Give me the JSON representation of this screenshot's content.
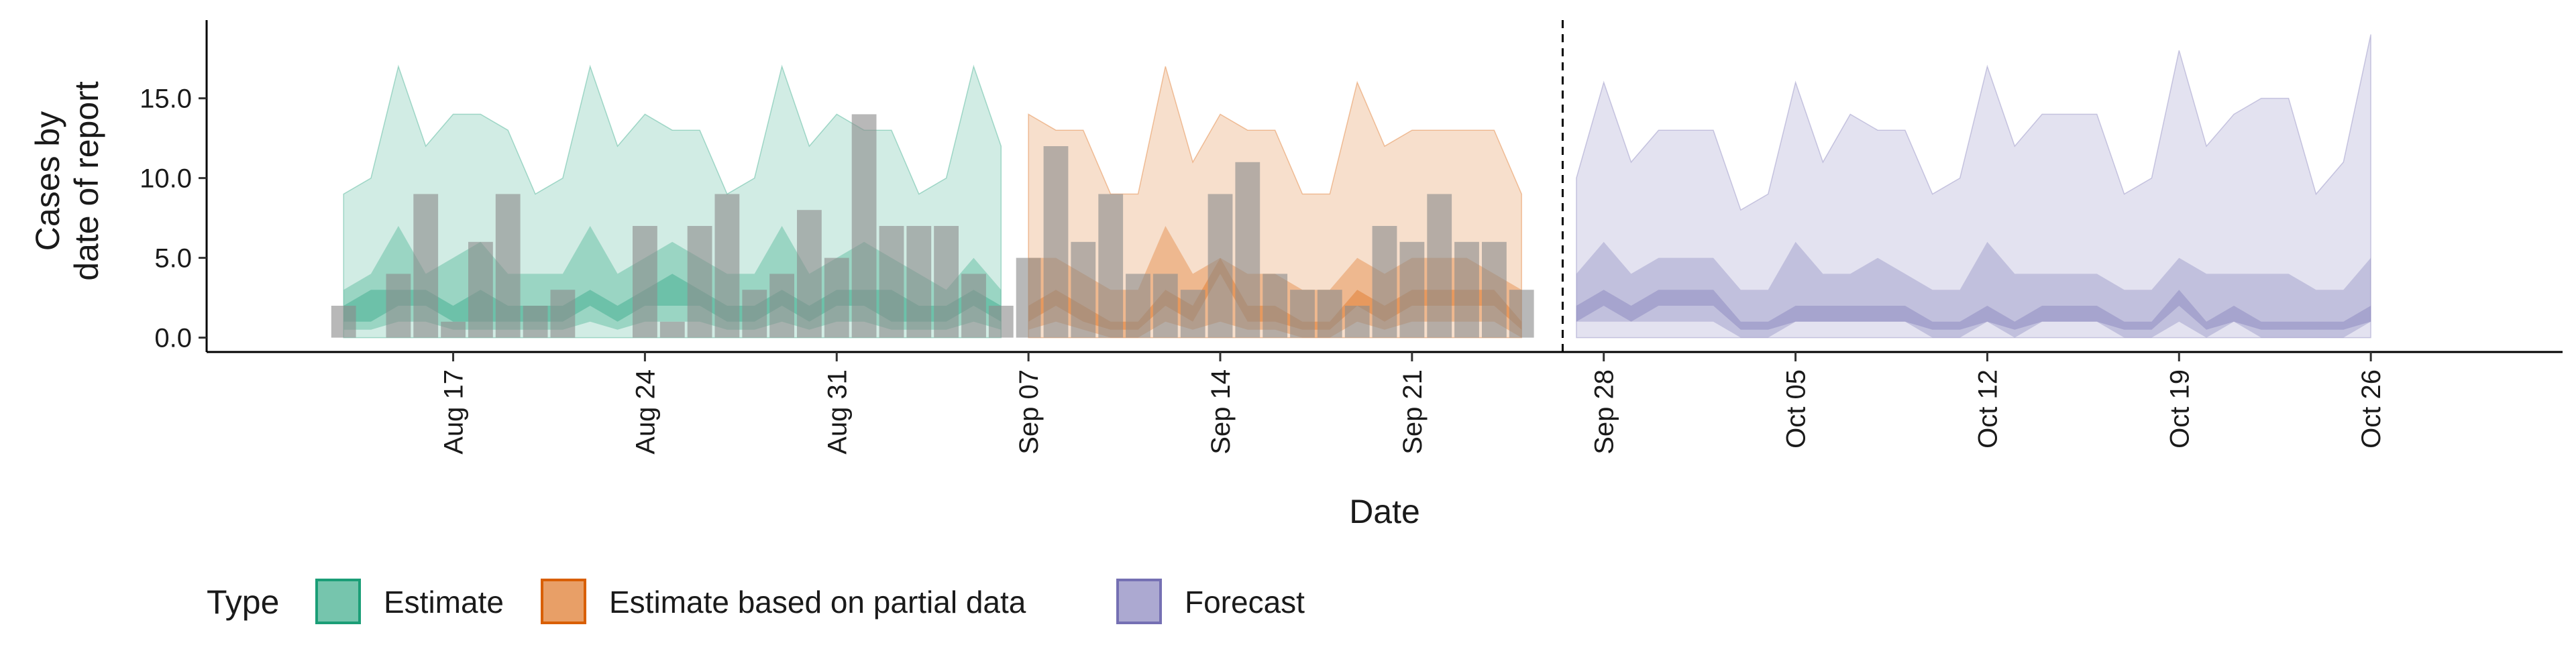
{
  "chart_data": {
    "type": "area",
    "title": "",
    "xlabel": "Date",
    "ylabel_lines": [
      "Cases by",
      "date of report"
    ],
    "ylim": [
      -0.9,
      19.9
    ],
    "y_ticks": [
      0,
      5,
      10,
      15
    ],
    "y_tick_labels": [
      "0.0",
      "5.0",
      "10.0",
      "15.0"
    ],
    "x_start": "Aug 13",
    "x_range_days": [
      -5,
      81
    ],
    "x_ticks": [
      {
        "label": "Aug 17",
        "day": 4
      },
      {
        "label": "Aug 24",
        "day": 11
      },
      {
        "label": "Aug 31",
        "day": 18
      },
      {
        "label": "Sep 07",
        "day": 25
      },
      {
        "label": "Sep 14",
        "day": 32
      },
      {
        "label": "Sep 21",
        "day": 39
      },
      {
        "label": "Sep 28",
        "day": 46
      },
      {
        "label": "Oct 05",
        "day": 53
      },
      {
        "label": "Oct 12",
        "day": 60
      },
      {
        "label": "Oct 19",
        "day": 67
      },
      {
        "label": "Oct 26",
        "day": 74
      }
    ],
    "forecast_start_day": 44.5,
    "colors": {
      "estimate": "#1b9e77",
      "partial": "#d95f02",
      "forecast": "#7570b3",
      "bars": "#8c8c8c"
    },
    "legend": {
      "title": "Type",
      "position": "bottom",
      "entries": [
        {
          "key": "estimate",
          "label": "Estimate"
        },
        {
          "key": "partial",
          "label": "Estimate based on partial data"
        },
        {
          "key": "forecast",
          "label": "Forecast"
        }
      ]
    },
    "reported_cases": {
      "start_day": 0,
      "values": [
        2,
        0,
        4,
        9,
        1,
        6,
        9,
        2,
        3,
        0,
        0,
        7,
        1,
        7,
        9,
        3,
        4,
        8,
        5,
        14,
        7,
        7,
        7,
        4,
        2,
        5,
        12,
        6,
        9,
        4,
        4,
        3,
        9,
        11,
        4,
        3,
        3,
        2,
        7,
        6,
        9,
        6,
        6,
        3
      ]
    },
    "series": [
      {
        "name": "Estimate",
        "key": "estimate",
        "start_day": 0,
        "upper90": [
          9,
          10,
          17,
          12,
          14,
          14,
          13,
          9,
          10,
          17,
          12,
          14,
          13,
          13,
          9,
          10,
          17,
          12,
          14,
          13,
          13,
          9,
          10,
          17,
          12
        ],
        "upper50": [
          3,
          4,
          7,
          4,
          5,
          6,
          4,
          4,
          4,
          7,
          4,
          5,
          6,
          5,
          4,
          4,
          7,
          4,
          5,
          6,
          5,
          4,
          3,
          5,
          3
        ],
        "upper20": [
          2,
          3,
          3,
          3,
          2,
          3,
          2,
          2,
          2,
          3,
          2,
          3,
          4,
          3,
          2,
          2,
          3,
          2,
          3,
          3,
          3,
          2,
          2,
          3,
          2
        ],
        "lower20": [
          1,
          1,
          2,
          2,
          1,
          1,
          1,
          1,
          1,
          2,
          1,
          2,
          2,
          2,
          1,
          1,
          2,
          1,
          2,
          2,
          1,
          1,
          1,
          2,
          1
        ],
        "lower50": [
          0.5,
          0.5,
          1,
          1,
          0.5,
          0.5,
          0.5,
          0.5,
          0.5,
          1,
          0.5,
          1,
          1,
          1,
          0.5,
          0.5,
          1,
          0.5,
          1,
          1,
          0.5,
          0.5,
          0.5,
          1,
          0.5
        ],
        "lower90": [
          0,
          0,
          0,
          0,
          0,
          0,
          0,
          0,
          0,
          0,
          0,
          0,
          0,
          0,
          0,
          0,
          0,
          0,
          0,
          0,
          0,
          0,
          0,
          0,
          0
        ]
      },
      {
        "name": "Estimate based on partial data",
        "key": "partial",
        "start_day": 25,
        "upper90": [
          14,
          13,
          13,
          9,
          9,
          17,
          11,
          14,
          13,
          13,
          9,
          9,
          16,
          12,
          13,
          13,
          13,
          13,
          9
        ],
        "upper50": [
          5,
          5,
          4,
          3,
          3,
          7,
          4,
          5,
          4,
          4,
          3,
          3,
          5,
          4,
          5,
          5,
          5,
          4,
          3
        ],
        "upper20": [
          2,
          3,
          2,
          1,
          1,
          3,
          2,
          5,
          2,
          2,
          1,
          1,
          3,
          2,
          3,
          3,
          3,
          3,
          1
        ],
        "lower20": [
          1,
          2,
          1,
          0.5,
          0.5,
          2,
          1,
          4,
          1,
          1,
          0.5,
          0.5,
          2,
          1,
          2,
          2,
          2,
          2,
          0.5
        ],
        "lower50": [
          0.5,
          1,
          0.5,
          0,
          0,
          1,
          0.5,
          1,
          0.5,
          0.5,
          0,
          0,
          1,
          0.5,
          1,
          1,
          1,
          1,
          0
        ],
        "lower90": [
          0,
          0,
          0,
          0,
          0,
          0,
          0,
          0,
          0,
          0,
          0,
          0,
          0,
          0,
          0,
          0,
          0,
          0,
          0
        ]
      },
      {
        "name": "Forecast",
        "key": "forecast",
        "start_day": 45,
        "upper90": [
          10,
          16,
          11,
          13,
          13,
          13,
          8,
          9,
          16,
          11,
          14,
          13,
          13,
          9,
          10,
          17,
          12,
          14,
          14,
          14,
          9,
          10,
          18,
          12,
          14,
          15,
          15,
          9,
          11,
          19
        ],
        "upper50": [
          4,
          6,
          4,
          5,
          5,
          5,
          3,
          3,
          6,
          4,
          4,
          5,
          4,
          3,
          3,
          6,
          4,
          4,
          4,
          4,
          3,
          3,
          5,
          4,
          4,
          4,
          4,
          3,
          3,
          5
        ],
        "upper20": [
          2,
          3,
          2,
          3,
          3,
          3,
          1,
          1,
          2,
          2,
          2,
          2,
          2,
          1,
          1,
          2,
          1,
          2,
          2,
          2,
          1,
          1,
          3,
          1,
          2,
          1,
          1,
          1,
          1,
          2
        ],
        "lower20": [
          1,
          2,
          1,
          2,
          2,
          2,
          0.5,
          0.5,
          1,
          1,
          1,
          1,
          1,
          0.5,
          0.5,
          1,
          0.5,
          1,
          1,
          1,
          0.5,
          0.5,
          2,
          0.5,
          1,
          0.5,
          0.5,
          0.5,
          0.5,
          1
        ],
        "lower50": [
          1,
          1,
          1,
          1,
          1,
          1,
          0,
          0,
          1,
          1,
          1,
          1,
          1,
          0,
          0,
          1,
          0,
          1,
          1,
          1,
          0,
          0,
          1,
          0,
          1,
          0,
          0,
          0,
          0,
          1
        ],
        "lower90": [
          0,
          0,
          0,
          0,
          0,
          0,
          0,
          0,
          0,
          0,
          0,
          0,
          0,
          0,
          0,
          0,
          0,
          0,
          0,
          0,
          0,
          0,
          0,
          0,
          0,
          0,
          0,
          0,
          0,
          0
        ]
      }
    ]
  }
}
